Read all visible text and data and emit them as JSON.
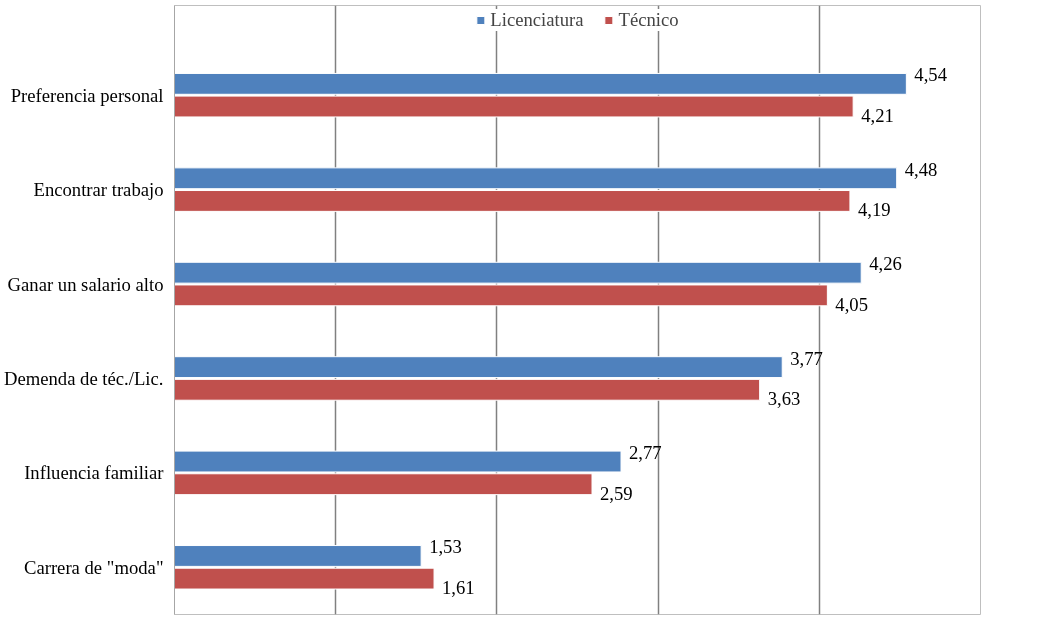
{
  "chart_data": {
    "type": "bar",
    "orientation": "horizontal",
    "categories": [
      "Preferencia personal",
      "Encontrar trabajo",
      "Ganar un salario alto",
      "Demenda de téc./Lic.",
      "Influencia familiar",
      "Carrera de \"moda\""
    ],
    "series": [
      {
        "name": "Licenciatura",
        "color": "#4f81bd",
        "values": [
          4.54,
          4.48,
          4.26,
          3.77,
          2.77,
          1.53
        ],
        "value_labels": [
          "4,54",
          "4,48",
          "4,26",
          "3,77",
          "2,77",
          "1,53"
        ]
      },
      {
        "name": "Técnico",
        "color": "#c0504d",
        "values": [
          4.21,
          4.19,
          4.05,
          3.63,
          2.59,
          1.61
        ],
        "value_labels": [
          "4,21",
          "4,19",
          "4,05",
          "3,63",
          "2,59",
          "1,61"
        ]
      }
    ],
    "xlim": [
      0,
      5
    ],
    "xticks": [
      {
        "value": 0,
        "label": null
      },
      {
        "value": 1,
        "label": null
      },
      {
        "value": 2,
        "label": null
      },
      {
        "value": 3,
        "label": null
      },
      {
        "value": 4,
        "label": null
      },
      {
        "value": 5,
        "label": null
      }
    ],
    "tick_labels": "y",
    "grid": "x",
    "legend": "top"
  }
}
